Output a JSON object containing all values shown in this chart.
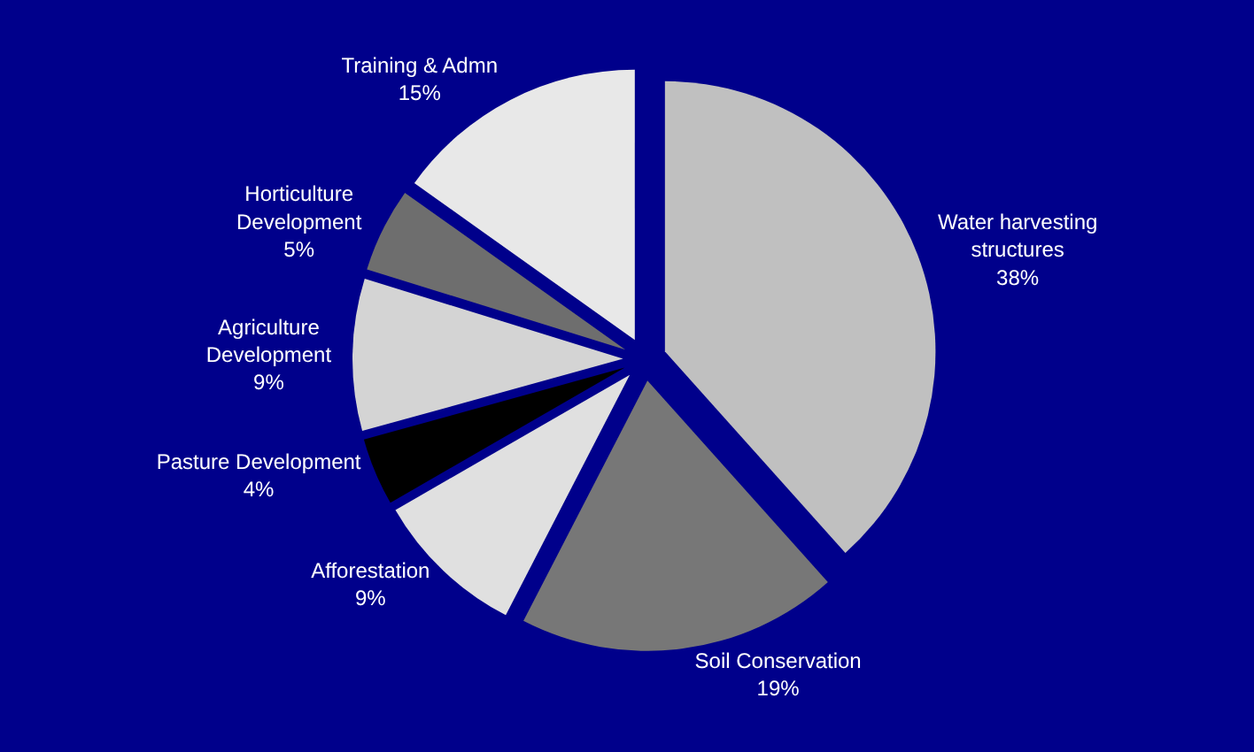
{
  "chart_data": {
    "type": "pie",
    "categories": [
      "Water harvesting\nstructures",
      "Soil Conservation",
      "Afforestation",
      "Pasture Development",
      "Agriculture\nDevelopment",
      "Horticulture\nDevelopment",
      "Training & Admn"
    ],
    "values": [
      38,
      19,
      9,
      4,
      9,
      5,
      15
    ],
    "value_labels": [
      "38%",
      "19%",
      "9%",
      "4%",
      "9%",
      "5%",
      "15%"
    ],
    "colors": [
      "#c0c0c0",
      "#777777",
      "#e0e0e0",
      "#000000",
      "#d4d4d4",
      "#6e6e6e",
      "#e8e8e8"
    ],
    "legend": false
  }
}
